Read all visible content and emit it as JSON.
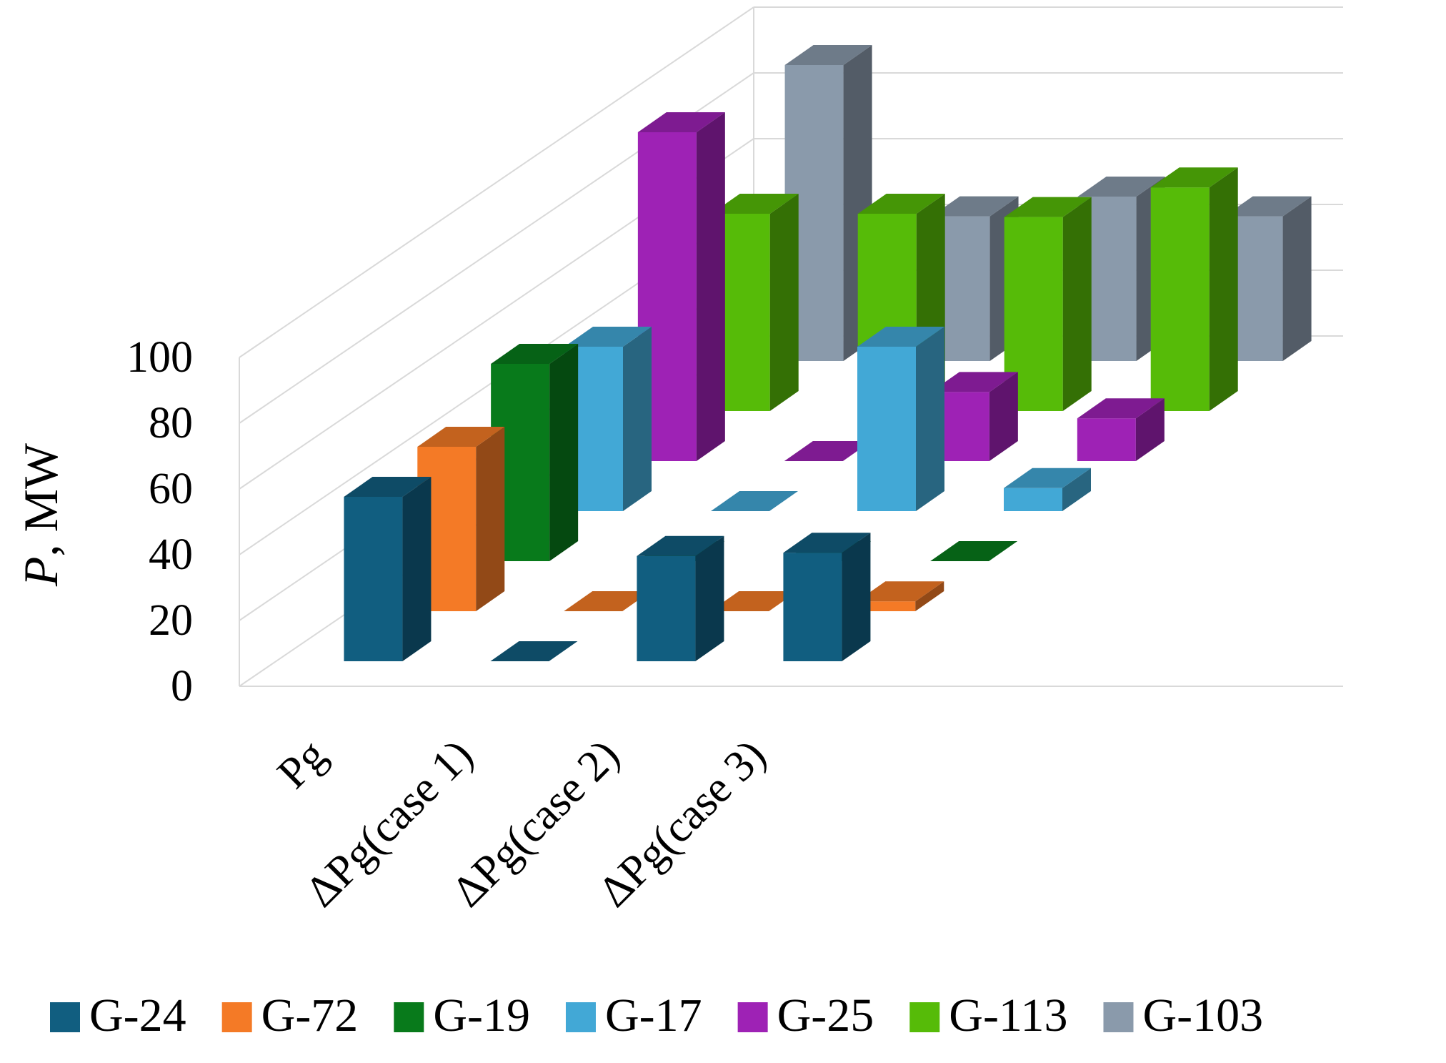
{
  "chart_data": {
    "type": "bar3d",
    "title": "",
    "ylabel_italic": "P",
    "ylabel_rest": ", MW",
    "ylim": [
      0,
      100
    ],
    "yticks": [
      "0",
      "20",
      "40",
      "60",
      "80",
      "100"
    ],
    "categories": [
      "Pg",
      "ΔPg(case 1)",
      "ΔPg(case 2)",
      "ΔPg(case 3)"
    ],
    "series": [
      {
        "name": "G-24",
        "color": "#115e80",
        "values": [
          50,
          0,
          32,
          33
        ]
      },
      {
        "name": "G-72",
        "color": "#f47a26",
        "values": [
          50,
          0,
          0,
          3
        ]
      },
      {
        "name": "G-19",
        "color": "#087a1b",
        "values": [
          60,
          0,
          0,
          0
        ]
      },
      {
        "name": "G-17",
        "color": "#42a8d6",
        "values": [
          50,
          0,
          50,
          7
        ]
      },
      {
        "name": "G-25",
        "color": "#9e22b5",
        "values": [
          100,
          0,
          21,
          13
        ]
      },
      {
        "name": "G-113",
        "color": "#56bb08",
        "values": [
          60,
          60,
          59,
          68
        ]
      },
      {
        "name": "G-103",
        "color": "#8a9aab",
        "values": [
          90,
          44,
          50,
          44
        ]
      }
    ],
    "legend_position": "bottom"
  }
}
